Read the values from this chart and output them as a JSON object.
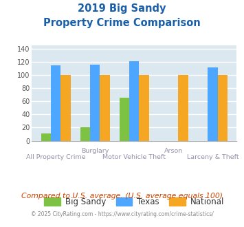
{
  "title_line1": "2019 Big Sandy",
  "title_line2": "Property Crime Comparison",
  "title_color": "#1a5fa8",
  "top_labels": [
    "",
    "Burglary",
    "",
    "Arson",
    ""
  ],
  "bottom_labels": [
    "All Property Crime",
    "",
    "Motor Vehicle Theft",
    "",
    "Larceny & Theft"
  ],
  "big_sandy": [
    11,
    21,
    65,
    0,
    0
  ],
  "texas": [
    115,
    116,
    121,
    0,
    111
  ],
  "national": [
    100,
    100,
    100,
    100,
    100
  ],
  "big_sandy_color": "#7dc242",
  "texas_color": "#4da6ff",
  "national_color": "#f5a623",
  "ylim": [
    0,
    145
  ],
  "yticks": [
    0,
    20,
    40,
    60,
    80,
    100,
    120,
    140
  ],
  "bg_color": "#dce8f0",
  "grid_color": "#ffffff",
  "footer_text": "Compared to U.S. average. (U.S. average equals 100)",
  "footer_color": "#cc4400",
  "copyright_text": "© 2025 CityRating.com - https://www.cityrating.com/crime-statistics/",
  "copyright_color": "#888888"
}
